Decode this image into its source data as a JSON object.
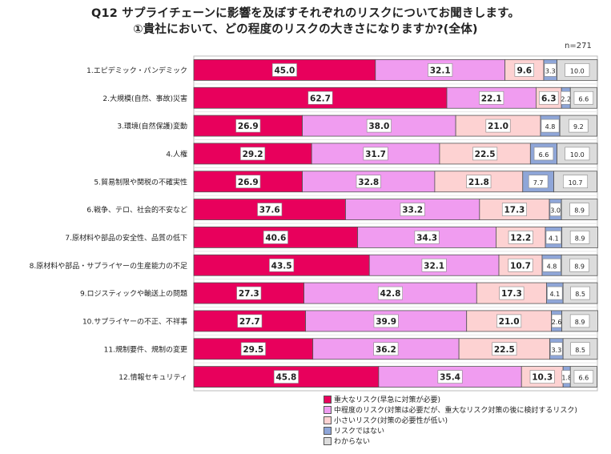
{
  "title_line1": "Q12 サプライチェーンに影響を及ぼすそれぞれのリスクについてお聞きします。",
  "title_line2": "①貴社において、どの程度のリスクの大きさになりますか?(全体)",
  "n_label": "n=271",
  "chart_data": {
    "type": "bar",
    "orientation": "horizontal",
    "stacked": true,
    "percent_scale": true,
    "xlim": [
      0,
      100
    ],
    "categories": [
      "1.エピデミック・パンデミック",
      "2.大規模(自然、事故)災害",
      "3.環境(自然保護)変動",
      "4.人権",
      "5.貿易制限や関税の不確実性",
      "6.戦争、テロ、社会的不安など",
      "7.原材料や部品の安全性、品質の低下",
      "8.原材料や部品・サプライヤーの生産能力の不足",
      "9.ロジスティックや輸送上の問題",
      "10.サプライヤーの不正、不祥事",
      "11.規制要件、規制の変更",
      "12.情報セキュリティ"
    ],
    "series": [
      {
        "name": "重大なリスク(早急に対策が必要)",
        "color": "#e8005c",
        "values": [
          45.0,
          62.7,
          26.9,
          29.2,
          26.9,
          37.6,
          40.6,
          43.5,
          27.3,
          27.7,
          29.5,
          45.8
        ]
      },
      {
        "name": "中程度のリスク(対策は必要だが、重大なリスク対策の後に検討するリスク)",
        "color": "#f09cf0",
        "values": [
          32.1,
          22.1,
          38.0,
          31.7,
          32.8,
          33.2,
          34.3,
          32.1,
          42.8,
          39.9,
          36.2,
          35.4
        ]
      },
      {
        "name": "小さいリスク(対策の必要性が低い)",
        "color": "#fdd2d2",
        "values": [
          9.6,
          6.3,
          21.0,
          22.5,
          21.8,
          17.3,
          12.2,
          10.7,
          17.3,
          21.0,
          22.5,
          10.3
        ]
      },
      {
        "name": "リスクではない",
        "color": "#8fa6d8",
        "values": [
          3.3,
          2.2,
          4.8,
          6.6,
          7.7,
          3.0,
          4.1,
          4.8,
          4.1,
          2.6,
          3.3,
          1.8
        ]
      },
      {
        "name": "わからない",
        "color": "#dcdcdc",
        "values": [
          10.0,
          6.6,
          9.2,
          10.0,
          10.7,
          8.9,
          8.9,
          8.9,
          8.5,
          8.9,
          8.5,
          6.6
        ]
      }
    ],
    "value_labels": [
      [
        "45.0",
        "32.1",
        "9.6",
        "3.3",
        "10.0"
      ],
      [
        "62.7",
        "22.1",
        "6.3",
        "2.2",
        "6.6"
      ],
      [
        "26.9",
        "38.0",
        "21.0",
        "4.8",
        "9.2"
      ],
      [
        "29.2",
        "31.7",
        "22.5",
        "6.6",
        "10.0"
      ],
      [
        "26.9",
        "32.8",
        "21.8",
        "7.7",
        "10.7"
      ],
      [
        "37.6",
        "33.2",
        "17.3",
        "3.0",
        "8.9"
      ],
      [
        "40.6",
        "34.3",
        "12.2",
        "4.1",
        "8.9"
      ],
      [
        "43.5",
        "32.1",
        "10.7",
        "4.8",
        "8.9"
      ],
      [
        "27.3",
        "42.8",
        "17.3",
        "4.1",
        "8.5"
      ],
      [
        "27.7",
        "39.9",
        "21.0",
        "2.6",
        "8.9"
      ],
      [
        "29.5",
        "36.2",
        "22.5",
        "3.3",
        "8.5"
      ],
      [
        "45.8",
        "35.4",
        "10.3",
        "1.8",
        "6.6"
      ]
    ],
    "legend_position": "bottom-right",
    "grid": true
  }
}
